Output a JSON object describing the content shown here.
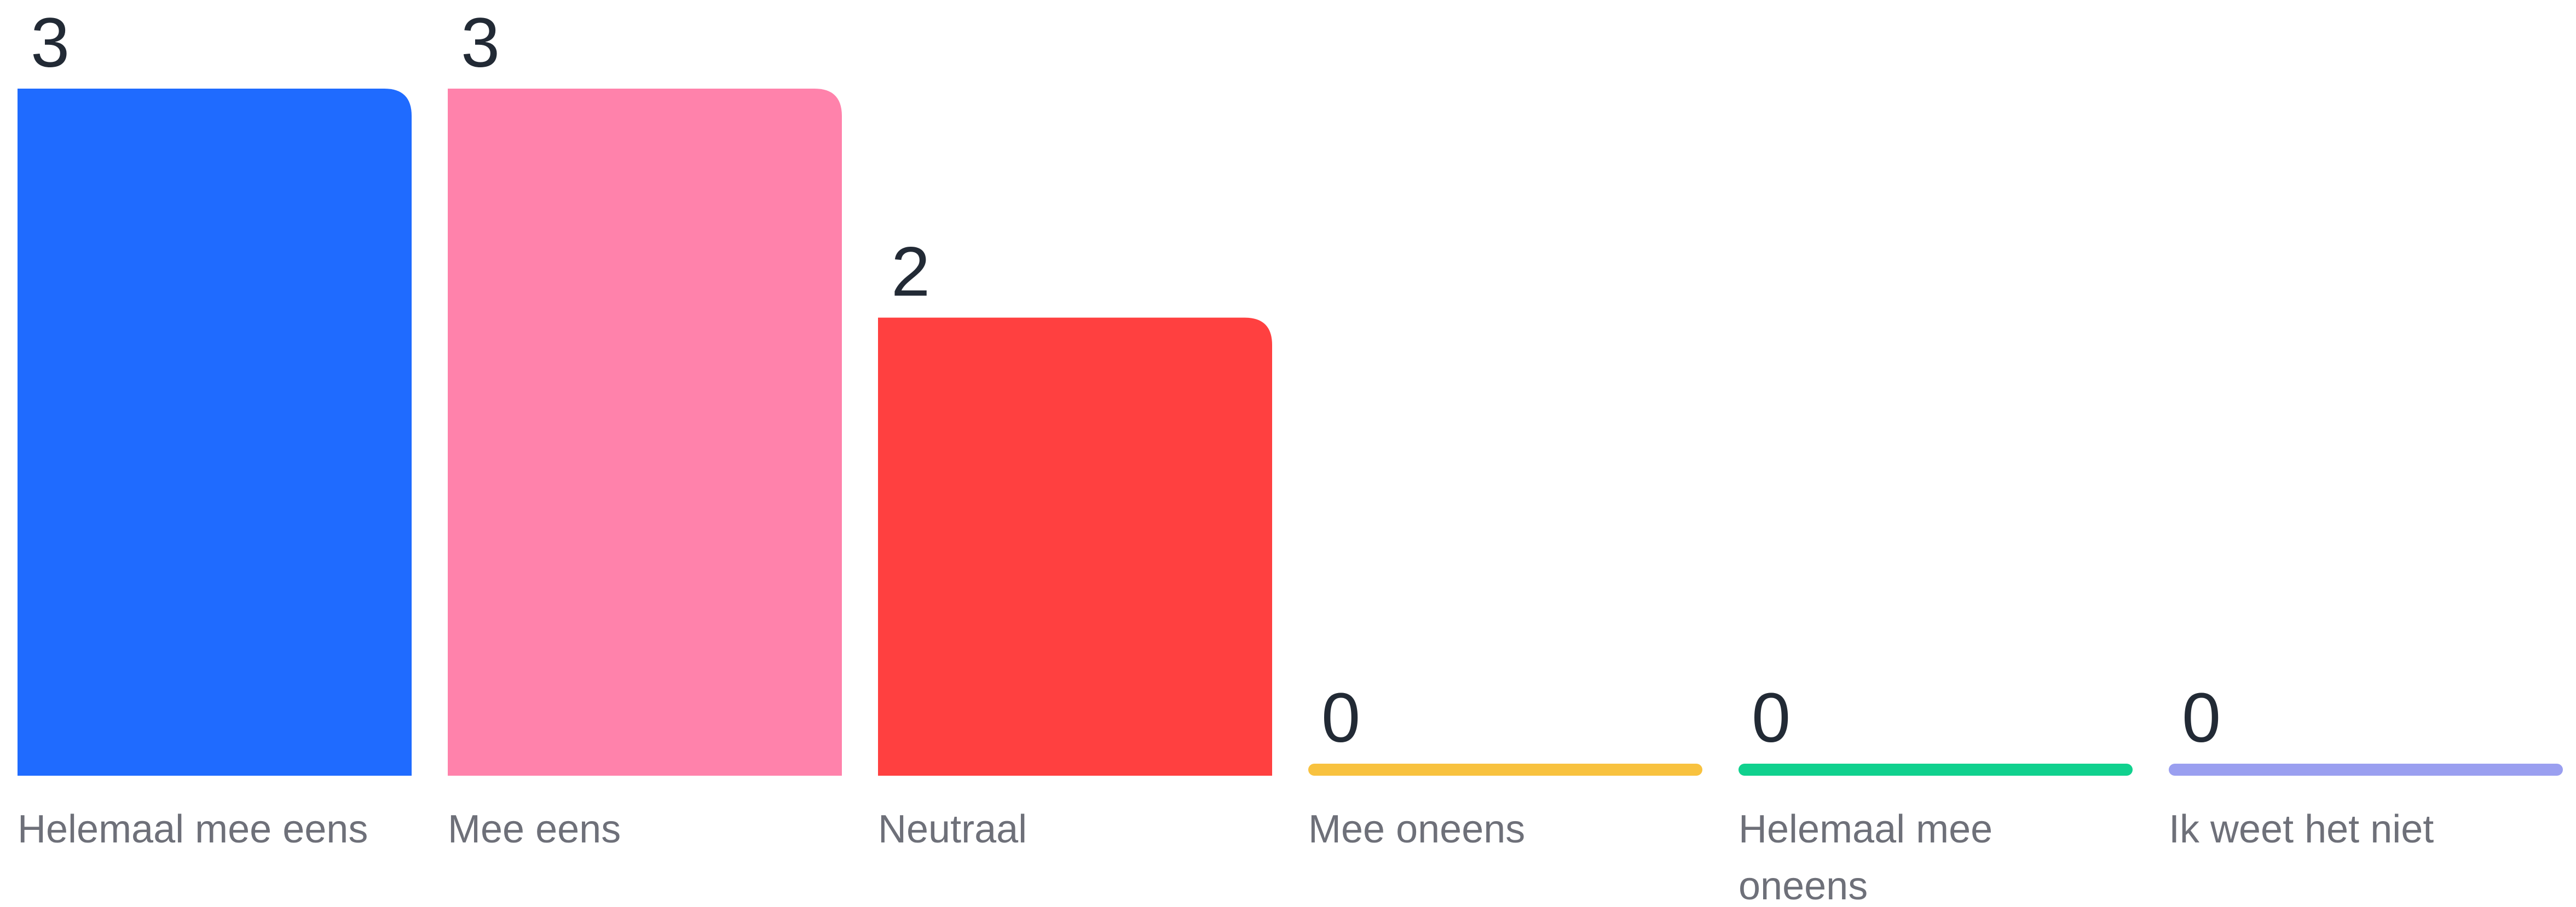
{
  "chart_data": {
    "type": "bar",
    "categories": [
      "Helemaal mee eens",
      "Mee eens",
      "Neutraal",
      "Mee oneens",
      "Helemaal mee oneens",
      "Ik weet het niet"
    ],
    "values": [
      3,
      3,
      2,
      0,
      0,
      0
    ],
    "colors": [
      "#1f6bff",
      "#ff82ab",
      "#ff4040",
      "#f8c23f",
      "#10d18e",
      "#9a9ff0"
    ],
    "ylim": [
      0,
      3
    ],
    "grid": false,
    "legend": "none",
    "title": "",
    "xlabel": "",
    "ylabel": ""
  }
}
